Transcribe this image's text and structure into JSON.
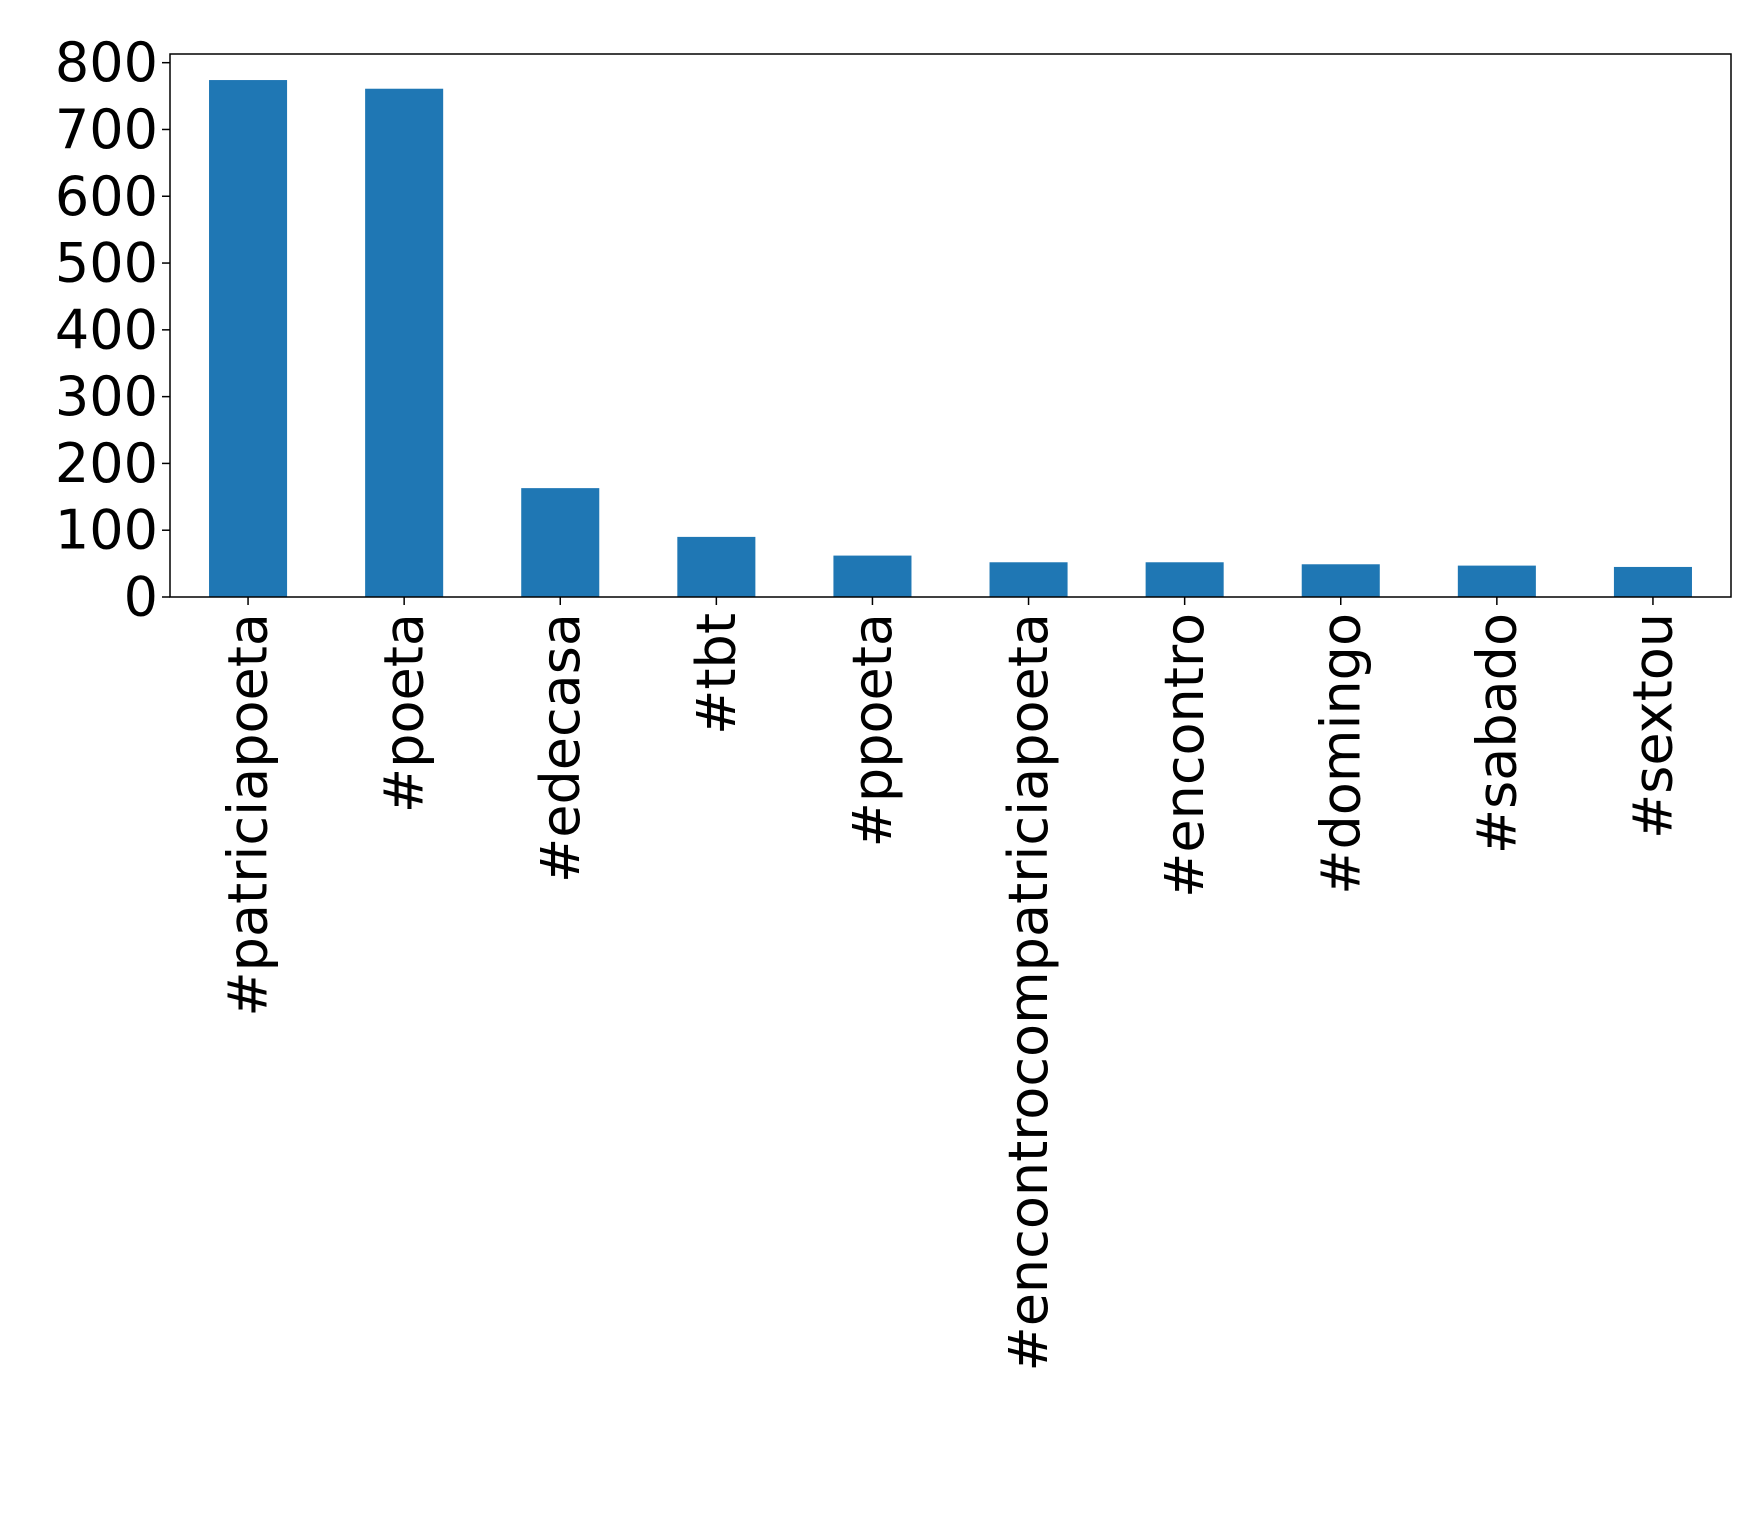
{
  "chart_data": {
    "type": "bar",
    "title": "",
    "xlabel": "",
    "ylabel": "",
    "categories": [
      "#patriciapoeta",
      "#poeta",
      "#edecasa",
      "#tbt",
      "#ppoeta",
      "#encontrocompatriciapoeta",
      "#encontro",
      "#domingo",
      "#sabado",
      "#sextou"
    ],
    "values": [
      774,
      761,
      163,
      90,
      62,
      52,
      52,
      49,
      47,
      45
    ],
    "ylim": [
      0,
      813
    ],
    "yticks": [
      0,
      100,
      200,
      300,
      400,
      500,
      600,
      700,
      800
    ],
    "bar_color": "#1f77b4",
    "grid": false,
    "legend": "none"
  }
}
